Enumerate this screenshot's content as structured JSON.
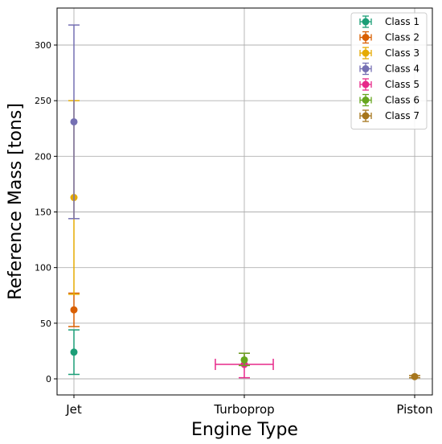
{
  "chart_data": {
    "type": "scatter",
    "title": "",
    "xlabel": "Engine Type",
    "ylabel": "Reference Mass [tons]",
    "categories": [
      "Jet",
      "Turboprop",
      "Piston"
    ],
    "ylim": [
      -15,
      335
    ],
    "yticks": [
      0,
      50,
      100,
      150,
      200,
      250,
      300
    ],
    "grid": true,
    "legend_position": "top-right",
    "series": [
      {
        "name": "Class 1",
        "color": "#1b9e77",
        "points": [
          {
            "x": "Jet",
            "y": 24,
            "yerr_low": 4,
            "yerr_high": 44
          }
        ]
      },
      {
        "name": "Class 2",
        "color": "#d95f02",
        "points": [
          {
            "x": "Jet",
            "y": 62,
            "yerr_low": 47,
            "yerr_high": 77
          }
        ]
      },
      {
        "name": "Class 3",
        "color": "#e6ab02",
        "points": [
          {
            "x": "Jet",
            "y": 163,
            "yerr_low": 76,
            "yerr_high": 250
          }
        ]
      },
      {
        "name": "Class 4",
        "color": "#7570b3",
        "points": [
          {
            "x": "Jet",
            "y": 231,
            "yerr_low": 144,
            "yerr_high": 318
          }
        ]
      },
      {
        "name": "Class 5",
        "color": "#e7298a",
        "points": [
          {
            "x": "Turboprop",
            "y": 13,
            "yerr_low": 1,
            "yerr_high": 23,
            "xerr": 0.17
          }
        ]
      },
      {
        "name": "Class 6",
        "color": "#66a61e",
        "points": [
          {
            "x": "Turboprop",
            "y": 17,
            "yerr_low": 12,
            "yerr_high": 23
          }
        ]
      },
      {
        "name": "Class 7",
        "color": "#a6761d",
        "points": [
          {
            "x": "Piston",
            "y": 2,
            "yerr_low": 1,
            "yerr_high": 3
          }
        ]
      }
    ]
  }
}
